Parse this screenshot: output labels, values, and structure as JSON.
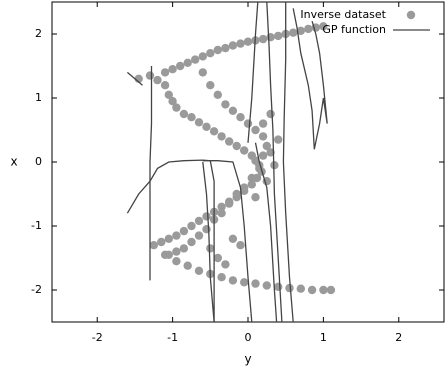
{
  "chart_data": {
    "type": "scatter",
    "xlabel": "y",
    "ylabel": "x",
    "xlim": [
      -2.6,
      2.6
    ],
    "ylim": [
      -2.5,
      2.5
    ],
    "xticks": [
      -2,
      -1,
      0,
      1,
      2
    ],
    "yticks": [
      -2,
      -1,
      0,
      1,
      2
    ],
    "grid": false,
    "legend_position": "top-right",
    "legend": [
      {
        "label": "Inverse dataset",
        "marker": "dot"
      },
      {
        "label": "GP function",
        "marker": "line"
      }
    ],
    "series": [
      {
        "name": "Inverse dataset",
        "kind": "scatter",
        "color": "#9a9a9a",
        "points": [
          [
            -1.45,
            1.3
          ],
          [
            -1.3,
            1.35
          ],
          [
            -1.2,
            1.28
          ],
          [
            -1.1,
            1.4
          ],
          [
            -1.0,
            1.45
          ],
          [
            -0.9,
            1.5
          ],
          [
            -0.8,
            1.55
          ],
          [
            -0.7,
            1.6
          ],
          [
            -0.6,
            1.65
          ],
          [
            -0.5,
            1.7
          ],
          [
            -0.4,
            1.75
          ],
          [
            -0.3,
            1.78
          ],
          [
            -0.2,
            1.82
          ],
          [
            -0.1,
            1.85
          ],
          [
            0.0,
            1.88
          ],
          [
            0.1,
            1.9
          ],
          [
            0.2,
            1.92
          ],
          [
            0.3,
            1.95
          ],
          [
            0.4,
            1.97
          ],
          [
            0.5,
            2.0
          ],
          [
            0.6,
            2.02
          ],
          [
            0.7,
            2.05
          ],
          [
            0.8,
            2.08
          ],
          [
            0.9,
            2.1
          ],
          [
            1.0,
            2.12
          ],
          [
            -1.1,
            1.2
          ],
          [
            -1.05,
            1.05
          ],
          [
            -1.0,
            0.95
          ],
          [
            -0.95,
            0.85
          ],
          [
            -0.85,
            0.75
          ],
          [
            -0.75,
            0.7
          ],
          [
            -0.65,
            0.62
          ],
          [
            -0.55,
            0.55
          ],
          [
            -0.45,
            0.48
          ],
          [
            -0.35,
            0.4
          ],
          [
            -0.25,
            0.32
          ],
          [
            -0.15,
            0.25
          ],
          [
            -0.05,
            0.18
          ],
          [
            0.05,
            0.1
          ],
          [
            0.1,
            0.02
          ],
          [
            0.15,
            -0.05
          ],
          [
            0.18,
            -0.15
          ],
          [
            0.12,
            -0.25
          ],
          [
            0.05,
            -0.35
          ],
          [
            -0.05,
            -0.45
          ],
          [
            -0.15,
            -0.55
          ],
          [
            -0.25,
            -0.62
          ],
          [
            -0.35,
            -0.7
          ],
          [
            -0.45,
            -0.78
          ],
          [
            -0.55,
            -0.85
          ],
          [
            -0.65,
            -0.92
          ],
          [
            -0.75,
            -1.0
          ],
          [
            -0.85,
            -1.08
          ],
          [
            -0.95,
            -1.15
          ],
          [
            -1.05,
            -1.2
          ],
          [
            -1.15,
            -1.25
          ],
          [
            -1.25,
            -1.3
          ],
          [
            -1.1,
            -1.45
          ],
          [
            -0.95,
            -1.55
          ],
          [
            -0.8,
            -1.62
          ],
          [
            -0.65,
            -1.7
          ],
          [
            -0.5,
            -1.75
          ],
          [
            -0.35,
            -1.8
          ],
          [
            -0.2,
            -1.85
          ],
          [
            -0.05,
            -1.88
          ],
          [
            0.1,
            -1.9
          ],
          [
            0.25,
            -1.93
          ],
          [
            0.4,
            -1.95
          ],
          [
            0.55,
            -1.97
          ],
          [
            0.7,
            -1.98
          ],
          [
            0.85,
            -2.0
          ],
          [
            1.0,
            -2.0
          ],
          [
            1.1,
            -2.0
          ],
          [
            -0.6,
            1.4
          ],
          [
            -0.5,
            1.2
          ],
          [
            -0.4,
            1.05
          ],
          [
            -0.3,
            0.9
          ],
          [
            -0.2,
            0.8
          ],
          [
            -0.1,
            0.7
          ],
          [
            0.0,
            0.6
          ],
          [
            0.1,
            0.5
          ],
          [
            0.2,
            0.4
          ],
          [
            0.25,
            0.25
          ],
          [
            0.2,
            0.1
          ],
          [
            0.15,
            -0.1
          ],
          [
            0.05,
            -0.25
          ],
          [
            -0.05,
            -0.4
          ],
          [
            -0.15,
            -0.5
          ],
          [
            -0.25,
            -0.65
          ],
          [
            -0.35,
            -0.8
          ],
          [
            -0.45,
            -0.9
          ],
          [
            -0.55,
            -1.05
          ],
          [
            -0.65,
            -1.15
          ],
          [
            -0.75,
            -1.25
          ],
          [
            -0.85,
            -1.35
          ],
          [
            -0.95,
            -1.4
          ],
          [
            -1.05,
            -1.45
          ],
          [
            -0.5,
            -1.35
          ],
          [
            -0.4,
            -1.5
          ],
          [
            -0.3,
            -1.6
          ],
          [
            0.4,
            0.35
          ],
          [
            0.3,
            0.15
          ],
          [
            0.35,
            -0.05
          ],
          [
            0.25,
            -0.3
          ],
          [
            0.1,
            -0.55
          ],
          [
            -0.2,
            -1.2
          ],
          [
            -0.1,
            -1.3
          ],
          [
            0.2,
            0.6
          ],
          [
            0.3,
            0.75
          ]
        ]
      },
      {
        "name": "GP function",
        "kind": "line",
        "color": "#444444",
        "segments": [
          [
            [
              -1.6,
              -0.8
            ],
            [
              -1.45,
              -0.5
            ],
            [
              -1.3,
              -0.3
            ],
            [
              -1.2,
              -0.1
            ],
            [
              -1.05,
              0.0
            ],
            [
              -0.85,
              0.02
            ],
            [
              -0.6,
              0.03
            ],
            [
              -0.5,
              0.02
            ],
            [
              -0.45,
              -0.3
            ],
            [
              -0.45,
              -1.1
            ],
            [
              -0.45,
              -2.5
            ]
          ],
          [
            [
              -1.3,
              -1.85
            ],
            [
              -1.3,
              -1.2
            ],
            [
              -1.3,
              -0.6
            ],
            [
              -1.3,
              0.0
            ],
            [
              -1.28,
              0.6
            ],
            [
              -1.28,
              1.1
            ],
            [
              -1.28,
              1.5
            ]
          ],
          [
            [
              -0.6,
              0.0
            ],
            [
              -0.55,
              -0.5
            ],
            [
              -0.52,
              -1.1
            ],
            [
              -0.5,
              -1.8
            ],
            [
              -0.45,
              -2.5
            ]
          ],
          [
            [
              -0.6,
              0.02
            ],
            [
              -0.4,
              0.02
            ],
            [
              -0.2,
              0.0
            ],
            [
              -0.1,
              -0.4
            ],
            [
              -0.05,
              -1.0
            ],
            [
              0.0,
              -1.8
            ],
            [
              0.05,
              -2.5
            ]
          ],
          [
            [
              0.0,
              0.3
            ],
            [
              0.05,
              1.0
            ],
            [
              0.1,
              2.0
            ],
            [
              0.13,
              2.5
            ]
          ],
          [
            [
              0.1,
              0.3
            ],
            [
              0.15,
              0.0
            ],
            [
              0.25,
              -0.4
            ],
            [
              0.3,
              -1.0
            ],
            [
              0.35,
              -2.0
            ],
            [
              0.38,
              -2.5
            ]
          ],
          [
            [
              0.25,
              2.5
            ],
            [
              0.28,
              1.8
            ],
            [
              0.3,
              1.2
            ],
            [
              0.33,
              0.5
            ],
            [
              0.35,
              -0.5
            ],
            [
              0.4,
              -1.5
            ],
            [
              0.45,
              -2.5
            ]
          ],
          [
            [
              0.5,
              2.5
            ],
            [
              0.5,
              1.6
            ],
            [
              0.48,
              0.7
            ],
            [
              0.47,
              0.0
            ],
            [
              0.5,
              -0.8
            ],
            [
              0.55,
              -1.8
            ],
            [
              0.6,
              -2.5
            ]
          ],
          [
            [
              0.6,
              2.4
            ],
            [
              0.65,
              2.1
            ],
            [
              0.7,
              1.7
            ],
            [
              0.8,
              1.2
            ],
            [
              0.85,
              0.8
            ],
            [
              0.88,
              0.2
            ],
            [
              0.95,
              0.6
            ],
            [
              1.0,
              1.0
            ],
            [
              1.05,
              0.6
            ],
            [
              1.0,
              1.2
            ],
            [
              0.95,
              1.7
            ],
            [
              0.9,
              2.0
            ],
            [
              0.85,
              2.2
            ]
          ],
          [
            [
              -1.6,
              1.4
            ],
            [
              -1.5,
              1.3
            ],
            [
              -1.4,
              1.2
            ]
          ]
        ]
      }
    ]
  }
}
